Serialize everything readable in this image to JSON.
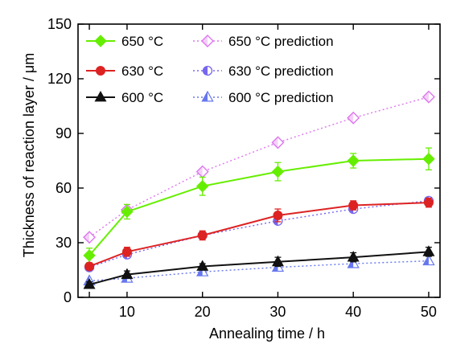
{
  "chart_data": {
    "type": "line",
    "xlabel": "Annealing time / h",
    "ylabel": "Thickness of reaction layer / μm",
    "xlim": [
      3.5,
      51.5
    ],
    "ylim": [
      0,
      150
    ],
    "xticks": [
      5,
      10,
      20,
      30,
      40,
      50
    ],
    "xtick_labels": [
      "",
      "10",
      "20",
      "30",
      "40",
      "50"
    ],
    "yticks": [
      0,
      30,
      60,
      90,
      120,
      150
    ],
    "ytick_labels": [
      "0",
      "30",
      "60",
      "90",
      "120",
      "150"
    ],
    "grid": false,
    "legend_position": "top-left",
    "series": [
      {
        "name": "650 °C",
        "kind": "measured",
        "color": "#66ee00",
        "marker": "diamond-filled",
        "x": [
          5,
          10,
          20,
          30,
          40,
          50
        ],
        "y": [
          23,
          47,
          61,
          69,
          75,
          76
        ],
        "err": [
          4,
          4,
          5,
          5,
          4,
          6
        ]
      },
      {
        "name": "630 °C",
        "kind": "measured",
        "color": "#dd2222",
        "marker": "circle-filled",
        "x": [
          5,
          10,
          20,
          30,
          40,
          50
        ],
        "y": [
          17,
          25,
          34,
          45,
          50.5,
          52
        ],
        "err": [
          1.5,
          2.5,
          2.5,
          3.5,
          2.5,
          2.5
        ]
      },
      {
        "name": "600 °C",
        "kind": "measured",
        "color": "#111111",
        "marker": "triangle-filled",
        "x": [
          5,
          10,
          20,
          30,
          40,
          50
        ],
        "y": [
          7,
          12.5,
          17,
          19.5,
          22,
          25
        ],
        "err": [
          1.5,
          2,
          1.5,
          2.5,
          2.5,
          2.5
        ]
      },
      {
        "name": "650 °C prediction",
        "kind": "prediction",
        "color": "#dd77ee",
        "marker": "diamond-open",
        "x": [
          5,
          10,
          20,
          30,
          40,
          50
        ],
        "y": [
          33,
          48,
          69,
          85,
          98.5,
          110
        ]
      },
      {
        "name": "630 °C prediction",
        "kind": "prediction",
        "color": "#7766ee",
        "marker": "circle-half",
        "x": [
          5,
          10,
          20,
          30,
          40,
          50
        ],
        "y": [
          16.5,
          23.5,
          34,
          42,
          48.5,
          53
        ]
      },
      {
        "name": "600 °C prediction",
        "kind": "prediction",
        "color": "#6677ee",
        "marker": "triangle-half",
        "x": [
          5,
          10,
          20,
          30,
          40,
          50
        ],
        "y": [
          9,
          10.5,
          14,
          16.5,
          18.5,
          20
        ]
      }
    ]
  }
}
